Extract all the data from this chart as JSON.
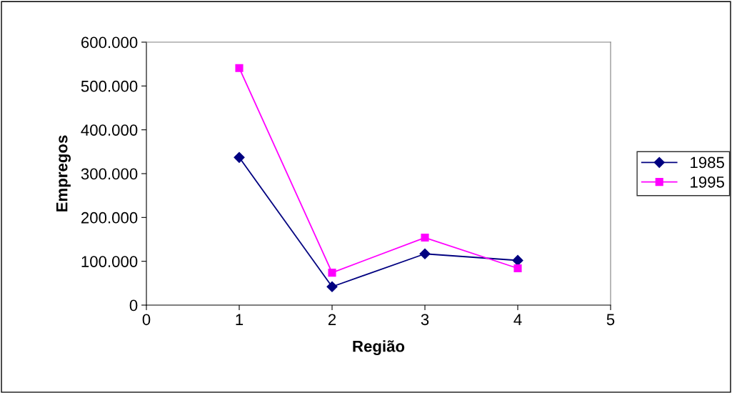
{
  "chart_data": {
    "type": "line",
    "xlabel": "Região",
    "ylabel": "Empregos",
    "x": [
      1,
      2,
      3,
      4
    ],
    "series": [
      {
        "name": "1985",
        "color": "#000080",
        "marker": "diamond",
        "values": [
          337000,
          42000,
          117000,
          102000
        ]
      },
      {
        "name": "1995",
        "color": "#ff00ff",
        "marker": "square",
        "values": [
          541000,
          74000,
          154000,
          84000
        ]
      }
    ],
    "xlim": [
      0,
      5
    ],
    "xticks": [
      0,
      1,
      2,
      3,
      4,
      5
    ],
    "ylim": [
      0,
      600000
    ],
    "yticks": [
      {
        "value": 0,
        "label": "0"
      },
      {
        "value": 100000,
        "label": "100.000"
      },
      {
        "value": 200000,
        "label": "200.000"
      },
      {
        "value": 300000,
        "label": "300.000"
      },
      {
        "value": 400000,
        "label": "400.000"
      },
      {
        "value": 500000,
        "label": "500.000"
      },
      {
        "value": 600000,
        "label": "600.000"
      }
    ],
    "grid": false,
    "legend": "right",
    "line_style": "solid"
  }
}
